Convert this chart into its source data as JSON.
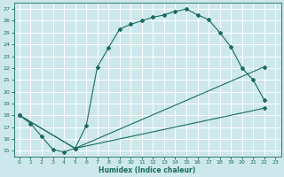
{
  "xlabel": "Humidex (Indice chaleur)",
  "bg_color": "#cde8ec",
  "grid_color": "#ffffff",
  "line_color": "#1a6b5e",
  "xlim": [
    -0.5,
    23.5
  ],
  "ylim": [
    14.5,
    27.5
  ],
  "yticks": [
    15,
    16,
    17,
    18,
    19,
    20,
    21,
    22,
    23,
    24,
    25,
    26,
    27
  ],
  "xticks": [
    0,
    1,
    2,
    3,
    4,
    5,
    6,
    7,
    8,
    9,
    10,
    11,
    12,
    13,
    14,
    15,
    16,
    17,
    18,
    19,
    20,
    21,
    22,
    23
  ],
  "curve1_x": [
    0,
    1,
    2,
    3,
    4,
    5,
    6,
    7,
    8,
    9,
    10,
    11,
    12,
    13,
    14,
    15,
    16,
    17,
    18,
    19,
    20,
    21,
    22
  ],
  "curve1_y": [
    18,
    17.3,
    16.2,
    15.1,
    14.9,
    15.2,
    17.1,
    22.1,
    23.7,
    25.3,
    25.7,
    26.0,
    26.3,
    26.5,
    26.8,
    27.0,
    26.5,
    26.1,
    25.0,
    23.8,
    22.0,
    21.0,
    19.3
  ],
  "curve2_x": [
    0,
    5,
    22
  ],
  "curve2_y": [
    18,
    15.2,
    22.1
  ],
  "curve3_x": [
    0,
    5,
    22
  ],
  "curve3_y": [
    18,
    15.2,
    18.6
  ]
}
